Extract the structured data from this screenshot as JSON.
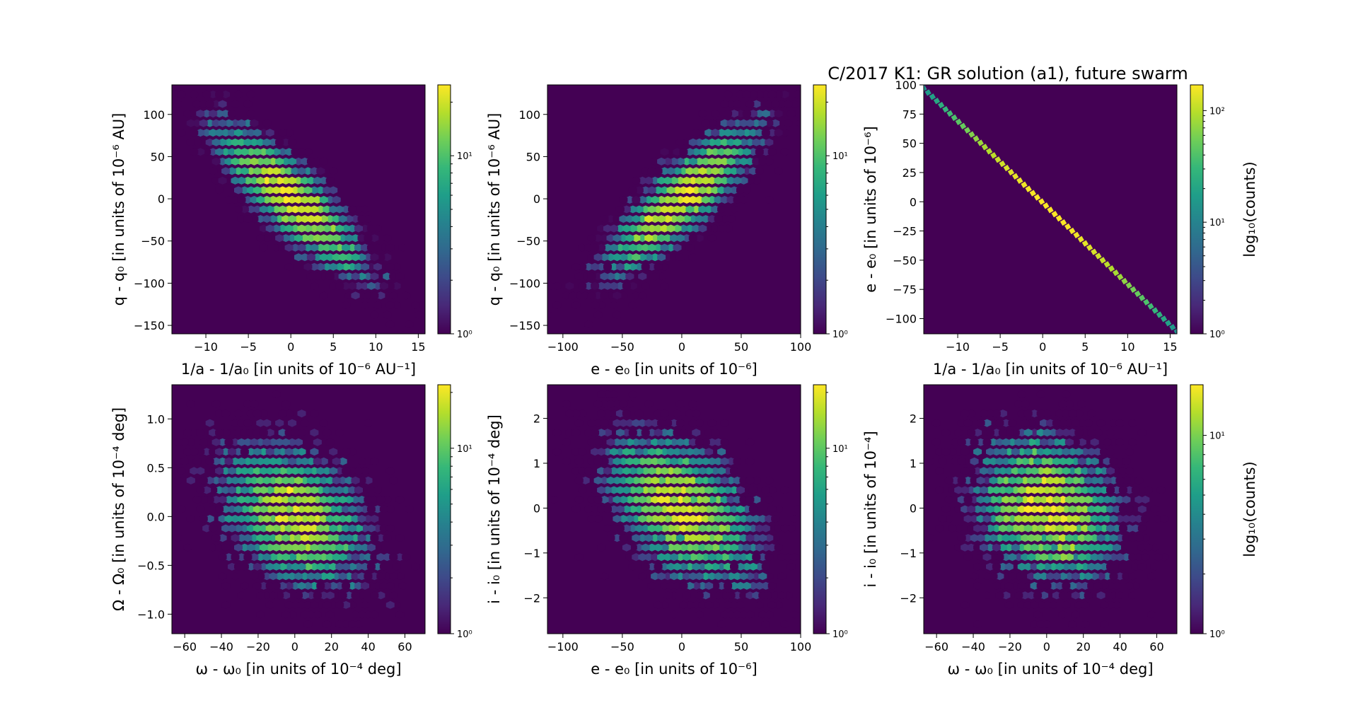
{
  "figure": {
    "title": "C/2017 K1: GR solution (a1), future swarm"
  },
  "colors": {
    "viridis": [
      "#440154",
      "#482878",
      "#3e4989",
      "#31688e",
      "#26828e",
      "#1f9e89",
      "#35b779",
      "#6ece58",
      "#b5de2b",
      "#fde725"
    ]
  },
  "chart_data": [
    {
      "type": "hexbin",
      "id": "p1",
      "xlabel": "1/a - 1/a₀ [in units of 10⁻⁶ AU⁻¹]",
      "ylabel": "q - q₀ [in units of 10⁻⁶ AU]",
      "xlim": [
        -14,
        15.8
      ],
      "ylim": [
        -160,
        135
      ],
      "xticks": [
        -10,
        -5,
        0,
        5,
        10,
        15
      ],
      "yticks": [
        -150,
        -100,
        -50,
        0,
        50,
        100
      ],
      "correlation": -0.85,
      "spread_x": 4.5,
      "spread_y": 45,
      "colorbar": {
        "scale": "log",
        "min": 1,
        "max": 25,
        "ticks": [
          "10⁰",
          "10¹"
        ],
        "label": ""
      }
    },
    {
      "type": "hexbin",
      "id": "p2",
      "xlabel": "e - e₀ [in units of 10⁻⁶]",
      "ylabel": "q - q₀ [in units of 10⁻⁶ AU]",
      "xlim": [
        -113,
        100
      ],
      "ylim": [
        -160,
        135
      ],
      "xticks": [
        -100,
        -50,
        0,
        50,
        100
      ],
      "yticks": [
        -150,
        -100,
        -50,
        0,
        50,
        100
      ],
      "correlation": 0.85,
      "spread_x": 32,
      "spread_y": 45,
      "colorbar": {
        "scale": "log",
        "min": 1,
        "max": 25,
        "ticks": [
          "10⁰",
          "10¹"
        ],
        "label": ""
      }
    },
    {
      "type": "hexbin",
      "id": "p3",
      "xlabel": "1/a - 1/a₀ [in units of 10⁻⁶ AU⁻¹]",
      "ylabel": "e - e₀ [in units of 10⁻⁶]",
      "xlim": [
        -14,
        15.8
      ],
      "ylim": [
        -113,
        100
      ],
      "xticks": [
        -10,
        -5,
        0,
        5,
        10,
        15
      ],
      "yticks": [
        -100,
        -75,
        -50,
        -25,
        0,
        25,
        50,
        75,
        100
      ],
      "line": {
        "x": [
          -14,
          15.8
        ],
        "y": [
          97,
          -111
        ]
      },
      "colorbar": {
        "scale": "log",
        "min": 1,
        "max": 170,
        "ticks": [
          "10⁰",
          "10¹",
          "10²"
        ],
        "label": "log₁₀(counts)"
      }
    },
    {
      "type": "hexbin",
      "id": "p4",
      "xlabel": "ω - ω₀ [in units of 10⁻⁴ deg]",
      "ylabel": "Ω - Ω₀ [in units of 10⁻⁴ deg]",
      "xlim": [
        -67,
        71
      ],
      "ylim": [
        -1.2,
        1.35
      ],
      "xticks": [
        -60,
        -40,
        -20,
        0,
        20,
        40,
        60
      ],
      "yticks": [
        -1.0,
        -0.5,
        0.0,
        0.5,
        1.0
      ],
      "tick_labels_y": [
        "−1.0",
        "−0.5",
        "0.0",
        "0.5",
        "1.0"
      ],
      "correlation": -0.35,
      "spread_x": 20,
      "spread_y": 0.38,
      "colorbar": {
        "scale": "log",
        "min": 1,
        "max": 22,
        "ticks": [
          "10⁰",
          "10¹"
        ],
        "label": ""
      }
    },
    {
      "type": "hexbin",
      "id": "p5",
      "xlabel": "e - e₀ [in units of 10⁻⁶]",
      "ylabel": "i - i₀ [in units of 10⁻⁴ deg]",
      "xlim": [
        -113,
        100
      ],
      "ylim": [
        -2.8,
        2.75
      ],
      "xticks": [
        -100,
        -50,
        0,
        50,
        100
      ],
      "yticks": [
        -2,
        -1,
        0,
        1,
        2
      ],
      "correlation": -0.5,
      "spread_x": 32,
      "spread_y": 0.85,
      "colorbar": {
        "scale": "log",
        "min": 1,
        "max": 22,
        "ticks": [
          "10⁰",
          "10¹"
        ],
        "label": ""
      }
    },
    {
      "type": "hexbin",
      "id": "p6",
      "xlabel": "ω - ω₀ [in units of 10⁻⁴ deg]",
      "ylabel": "i - i₀ [in units of 10⁻⁴]",
      "xlim": [
        -67,
        71
      ],
      "ylim": [
        -2.8,
        2.75
      ],
      "xticks": [
        -60,
        -40,
        -20,
        0,
        20,
        40,
        60
      ],
      "yticks": [
        -2,
        -1,
        0,
        1,
        2
      ],
      "correlation": -0.2,
      "spread_x": 20,
      "spread_y": 0.85,
      "colorbar": {
        "scale": "log",
        "min": 1,
        "max": 18,
        "ticks": [
          "10⁰",
          "10¹"
        ],
        "label": "log₁₀(counts)"
      }
    }
  ]
}
